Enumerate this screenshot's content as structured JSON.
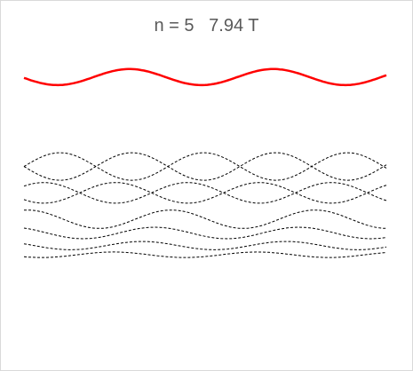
{
  "chart_data": {
    "type": "line",
    "title": "n = 5   7.94 T",
    "xlabel": "",
    "ylabel": "",
    "xlim": [
      0,
      20
    ],
    "ylim": [
      -11,
      1
    ],
    "grid": false,
    "legend": "none",
    "colors": {
      "highlight": "#ff0000",
      "background": "#000000"
    },
    "highlight": {
      "base": 0,
      "amplitude": 0.35,
      "period": 7.94,
      "phase": 4.1
    },
    "background_series": [
      {
        "base": -3.9,
        "amplitude": 0.6,
        "period": 7.94,
        "phase": 0.0
      },
      {
        "base": -3.9,
        "amplitude": 0.6,
        "period": 7.94,
        "phase": 3.97
      },
      {
        "base": -5.05,
        "amplitude": 0.45,
        "period": 7.94,
        "phase": 0.9
      },
      {
        "base": -5.05,
        "amplitude": 0.45,
        "period": 7.94,
        "phase": 4.87
      },
      {
        "base": -6.2,
        "amplitude": 0.4,
        "period": 7.94,
        "phase": 1.8
      },
      {
        "base": -6.8,
        "amplitude": 0.25,
        "period": 7.94,
        "phase": 2.7
      },
      {
        "base": -7.35,
        "amplitude": 0.18,
        "period": 7.94,
        "phase": 3.4
      },
      {
        "base": -7.75,
        "amplitude": 0.12,
        "period": 7.94,
        "phase": 5.0
      }
    ]
  }
}
